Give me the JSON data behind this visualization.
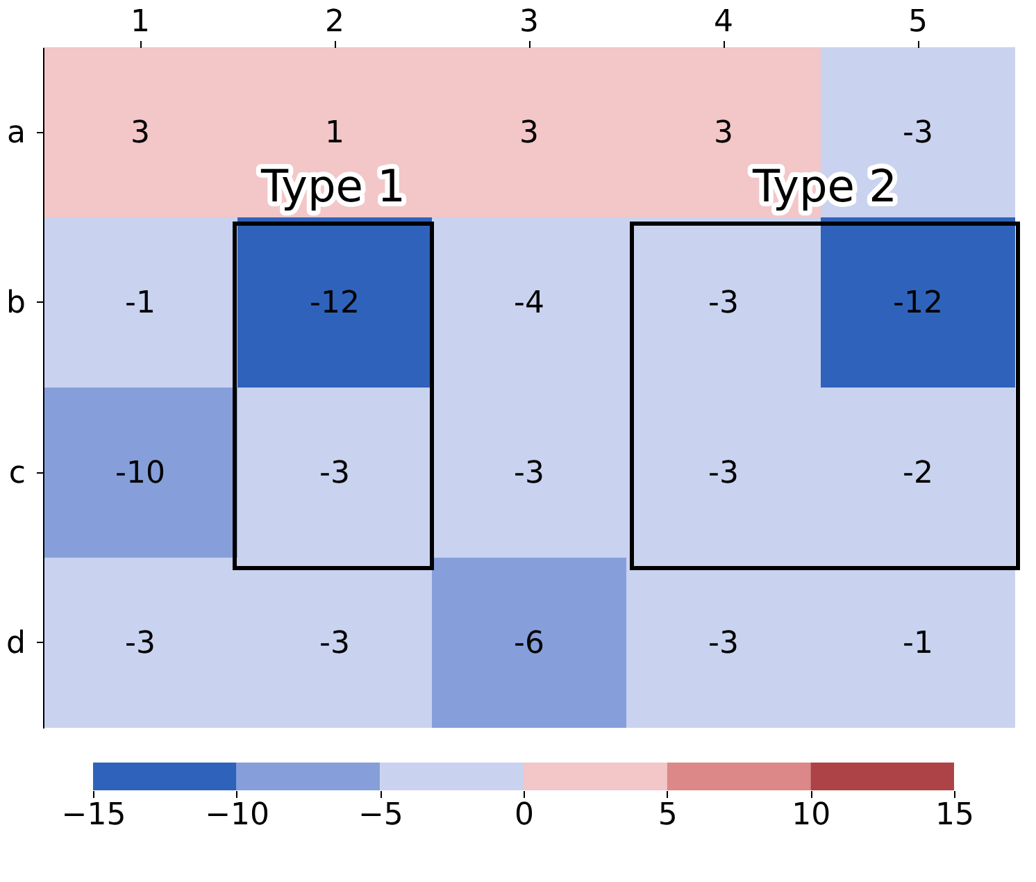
{
  "chart_data": {
    "type": "heatmap",
    "categories": [
      "1",
      "2",
      "3",
      "4",
      "5"
    ],
    "y_categories": [
      "a",
      "b",
      "c",
      "d"
    ],
    "cells": [
      [
        3,
        1,
        3,
        3,
        -3
      ],
      [
        -1,
        -12,
        -4,
        -3,
        -12
      ],
      [
        -10,
        -3,
        -3,
        -3,
        -2
      ],
      [
        -3,
        -3,
        -6,
        -3,
        -1
      ]
    ],
    "data_labels": true,
    "clim": [
      -15,
      15
    ],
    "cticks": [
      -15,
      -10,
      -5,
      0,
      5,
      10,
      15
    ],
    "annotations": [
      "Type 1",
      "Type 2"
    ]
  }
}
